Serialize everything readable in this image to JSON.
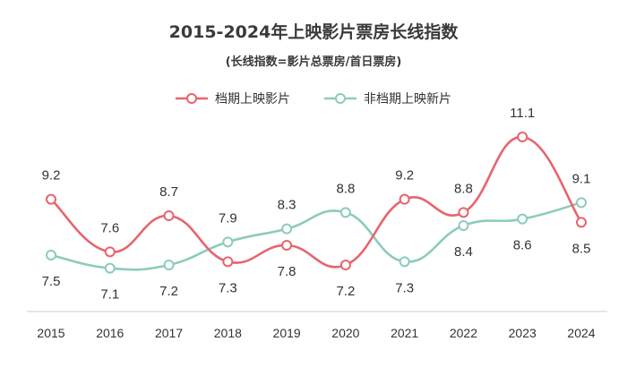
{
  "chart_data": {
    "type": "line",
    "title": "2015-2024年上映影片票房长线指数",
    "subtitle": "(长线指数=影片总票房/首日票房)",
    "xlabel": "",
    "ylabel": "",
    "categories": [
      "2015",
      "2016",
      "2017",
      "2018",
      "2019",
      "2020",
      "2021",
      "2022",
      "2023",
      "2024"
    ],
    "series": [
      {
        "name": "档期上映影片",
        "color": "#e8646c",
        "values": [
          9.2,
          7.6,
          8.7,
          7.3,
          7.8,
          7.2,
          9.2,
          8.8,
          11.1,
          8.5
        ],
        "label_side": [
          "above",
          "above",
          "above",
          "below",
          "below",
          "below",
          "above",
          "above",
          "above",
          "below"
        ]
      },
      {
        "name": "非档期上映新片",
        "color": "#8ccbbd",
        "values": [
          7.5,
          7.1,
          7.2,
          7.9,
          8.3,
          8.8,
          7.3,
          8.4,
          8.6,
          9.1
        ],
        "label_side": [
          "below",
          "below",
          "below",
          "above",
          "above",
          "above",
          "below",
          "below",
          "below",
          "above"
        ]
      }
    ],
    "ylim": [
      6.0,
      12.0
    ],
    "grid": false,
    "legend_position": "top-center"
  }
}
